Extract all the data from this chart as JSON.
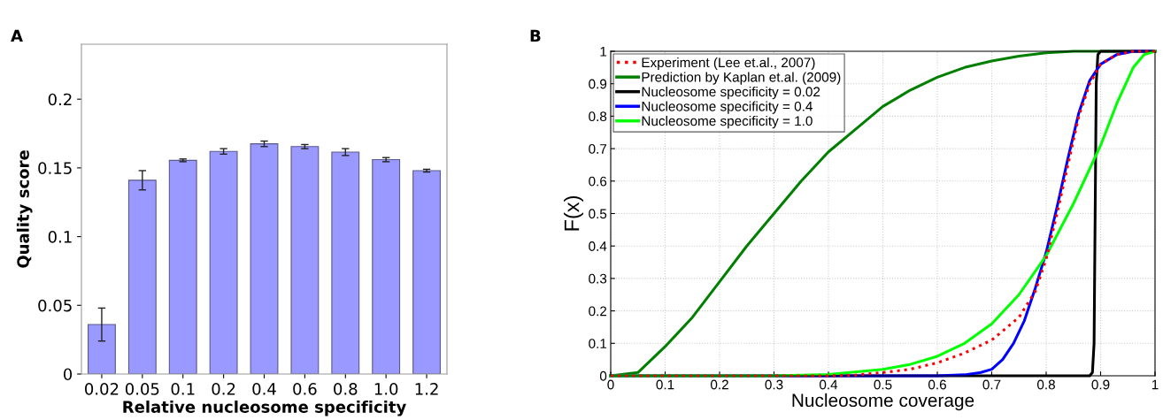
{
  "chart_data": [
    {
      "type": "bar",
      "annotations": [
        "A"
      ],
      "xlabel": "Relative nucleosome specificity",
      "ylabel": "Quality score",
      "categories": [
        "0.02",
        "0.05",
        "0.1",
        "0.2",
        "0.4",
        "0.6",
        "0.8",
        "1.0",
        "1.2"
      ],
      "values": [
        0.036,
        0.141,
        0.1555,
        0.162,
        0.1675,
        0.1655,
        0.1615,
        0.156,
        0.148
      ],
      "errors": [
        0.012,
        0.007,
        0.001,
        0.002,
        0.002,
        0.0015,
        0.0025,
        0.0015,
        0.001
      ],
      "color": "#9999ff",
      "ylim": [
        0,
        0.24
      ],
      "yticks": [
        0,
        0.05,
        0.1,
        0.15,
        0.2
      ],
      "grid": false
    },
    {
      "type": "line",
      "annotations": [
        "B"
      ],
      "xlabel": "Nucleosome coverage",
      "ylabel": "F(x)",
      "grid": true,
      "legend": "top left",
      "xlim": [
        0,
        1
      ],
      "ylim": [
        0,
        1
      ],
      "xticks": [
        0,
        0.1,
        0.2,
        0.3,
        0.4,
        0.5,
        0.6,
        0.7,
        0.8,
        0.9,
        1
      ],
      "yticks": [
        0,
        0.1,
        0.2,
        0.3,
        0.4,
        0.5,
        0.6,
        0.7,
        0.8,
        0.9,
        1
      ],
      "series": [
        {
          "name": "Experiment (Lee et.al., 2007)",
          "color": "#ff0000",
          "line_style": "dotted",
          "x": [
            0,
            0.4,
            0.45,
            0.5,
            0.55,
            0.6,
            0.65,
            0.7,
            0.75,
            0.78,
            0.8,
            0.82,
            0.84,
            0.86,
            0.88,
            0.9,
            0.93,
            0.96,
            1
          ],
          "values": [
            0,
            0,
            0.002,
            0.01,
            0.02,
            0.04,
            0.07,
            0.11,
            0.18,
            0.26,
            0.36,
            0.5,
            0.65,
            0.8,
            0.9,
            0.96,
            0.99,
            1,
            1
          ]
        },
        {
          "name": "Prediction by Kaplan et.al. (2009)",
          "color": "#007f00",
          "line_style": "solid",
          "x": [
            0,
            0.05,
            0.1,
            0.15,
            0.2,
            0.25,
            0.3,
            0.35,
            0.4,
            0.45,
            0.5,
            0.55,
            0.6,
            0.65,
            0.7,
            0.75,
            0.8,
            0.85,
            1
          ],
          "values": [
            0,
            0.01,
            0.09,
            0.18,
            0.29,
            0.4,
            0.5,
            0.6,
            0.69,
            0.76,
            0.83,
            0.88,
            0.92,
            0.95,
            0.97,
            0.985,
            0.995,
            1,
            1
          ]
        },
        {
          "name": "Nucleosome specificity = 0.02",
          "color": "#000000",
          "line_style": "solid",
          "x": [
            0,
            0.88,
            0.885,
            0.888,
            0.89,
            0.892,
            0.895,
            0.9,
            1
          ],
          "values": [
            0,
            0,
            0.01,
            0.1,
            0.5,
            0.9,
            0.99,
            1,
            1
          ]
        },
        {
          "name": "Nucleosome specificity = 0.4",
          "color": "#0000ff",
          "line_style": "solid",
          "x": [
            0,
            0.6,
            0.65,
            0.68,
            0.7,
            0.72,
            0.74,
            0.76,
            0.78,
            0.8,
            0.82,
            0.84,
            0.86,
            0.88,
            0.9,
            0.93,
            0.96,
            1
          ],
          "values": [
            0,
            0,
            0.003,
            0.01,
            0.02,
            0.05,
            0.1,
            0.17,
            0.27,
            0.38,
            0.52,
            0.67,
            0.81,
            0.91,
            0.96,
            0.99,
            1,
            1
          ]
        },
        {
          "name": "Nucleosome specificity = 1.0",
          "color": "#00ff00",
          "line_style": "solid",
          "x": [
            0,
            0.3,
            0.4,
            0.5,
            0.55,
            0.6,
            0.65,
            0.7,
            0.75,
            0.8,
            0.85,
            0.9,
            0.93,
            0.96,
            0.98,
            1
          ],
          "values": [
            0,
            0,
            0.004,
            0.02,
            0.035,
            0.06,
            0.1,
            0.16,
            0.25,
            0.37,
            0.53,
            0.71,
            0.84,
            0.95,
            0.99,
            1
          ]
        }
      ]
    }
  ]
}
